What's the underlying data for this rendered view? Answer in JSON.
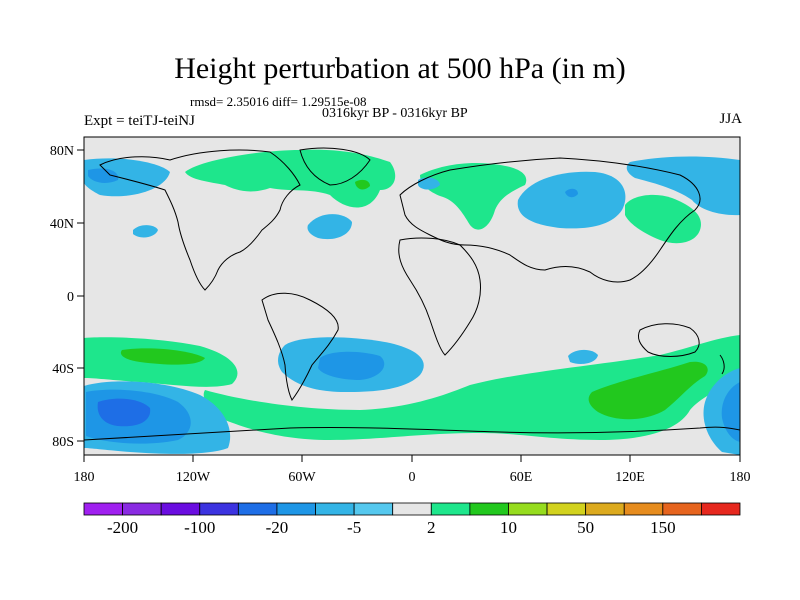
{
  "title": "Height perturbation at 500 hPa (in m)",
  "stats_text": "rmsd= 2.35016 diff= 1.29515e-08",
  "period_text": "0316kyr BP - 0316kyr BP",
  "experiment_label": "Expt = teiTJ-teiNJ",
  "season_label": "JJA",
  "map": {
    "projection": "cylindrical equidistant",
    "lon_range": [
      -180,
      180
    ],
    "lat_range": [
      -90,
      90
    ],
    "x_tick_labels": [
      "180",
      "120W",
      "60W",
      "0",
      "60E",
      "120E",
      "180"
    ],
    "y_tick_labels": [
      "80N",
      "40N",
      "0",
      "40S",
      "80S"
    ],
    "fields": [
      {
        "name": "north-pacific-west-negative",
        "class": "-20..-5"
      },
      {
        "name": "north-america-positive",
        "class": "2..10"
      },
      {
        "name": "north-atlantic-negative",
        "class": "-5..2"
      },
      {
        "name": "eurasia-positive",
        "class": "2..10"
      },
      {
        "name": "central-asia-negative",
        "class": "-20..-5"
      },
      {
        "name": "east-asia-positive",
        "class": "2..10"
      },
      {
        "name": "south-pacific-negative",
        "class": "-100..-20"
      },
      {
        "name": "south-atlantic-negative",
        "class": "-20..-5"
      },
      {
        "name": "southern-ocean-positive",
        "class": "10..50"
      }
    ]
  },
  "colorbar": {
    "colors": [
      "#a020f0",
      "#8a2be2",
      "#6a0de0",
      "#3c33e0",
      "#1e6ee6",
      "#1e96e6",
      "#33b4e6",
      "#55c8ee",
      "#e6e6e6",
      "#1ee68c",
      "#22c81e",
      "#96dc1e",
      "#d2d21e",
      "#dcaa1e",
      "#e68c1e",
      "#e6641e",
      "#e6281e"
    ],
    "labels": [
      "-200",
      "-100",
      "-20",
      "-5",
      "2",
      "10",
      "50",
      "150"
    ]
  }
}
